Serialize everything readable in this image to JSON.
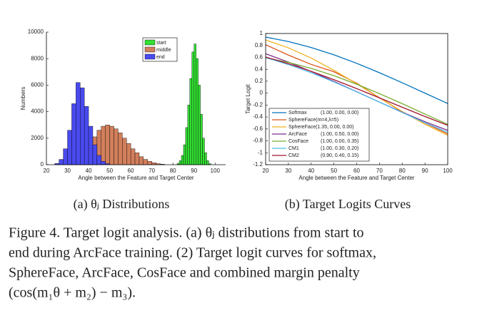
{
  "chart_data": [
    {
      "type": "histogram",
      "xlabel": "Angle between the Feature and Target Center",
      "ylabel": "Numbers",
      "xlim": [
        20,
        105
      ],
      "xticks": [
        20,
        30,
        40,
        50,
        60,
        70,
        80,
        90,
        100
      ],
      "ylim": [
        0,
        10000
      ],
      "yticks": [
        0,
        2000,
        4000,
        6000,
        8000,
        10000
      ],
      "legend": "top-right",
      "series": [
        {
          "name": "start",
          "color": "#33e033",
          "bins": [
            82,
            83,
            84,
            85,
            86,
            87,
            88,
            89,
            90,
            91,
            92,
            93,
            94,
            95,
            96,
            97,
            98
          ],
          "values": [
            100,
            300,
            700,
            1500,
            2800,
            4500,
            6500,
            8500,
            9100,
            8000,
            6000,
            3800,
            2000,
            900,
            300,
            80
          ]
        },
        {
          "name": "middle",
          "color": "#d27f5c",
          "bins": [
            30,
            32,
            34,
            36,
            38,
            40,
            42,
            44,
            46,
            48,
            50,
            52,
            54,
            56,
            58,
            60,
            62,
            64,
            66,
            68,
            70,
            72,
            74,
            76
          ],
          "values": [
            100,
            200,
            400,
            700,
            1100,
            1600,
            2100,
            2600,
            2900,
            3000,
            2900,
            2700,
            2400,
            2000,
            1600,
            1200,
            900,
            600,
            400,
            250,
            150,
            80,
            40
          ]
        },
        {
          "name": "end",
          "color": "#4a4af0",
          "bins": [
            24,
            26,
            28,
            30,
            32,
            34,
            36,
            38,
            40,
            42,
            44,
            46,
            48,
            50
          ],
          "values": [
            100,
            400,
            1200,
            2600,
            4600,
            6200,
            5800,
            4400,
            2900,
            1500,
            700,
            250,
            80
          ]
        }
      ]
    },
    {
      "type": "line",
      "xlabel": "Angle between the Feature and Target Center",
      "ylabel": "Target Logit",
      "xlim": [
        20,
        100
      ],
      "xticks": [
        20,
        30,
        40,
        50,
        60,
        70,
        80,
        90,
        100
      ],
      "ylim": [
        -1.2,
        1
      ],
      "yticks": [
        -1.2,
        -1,
        -0.8,
        -0.6,
        -0.4,
        -0.2,
        0,
        0.2,
        0.4,
        0.6,
        0.8,
        1
      ],
      "legend": "bottom-left",
      "x": [
        20,
        30,
        40,
        50,
        60,
        70,
        80,
        90,
        100
      ],
      "series": [
        {
          "name": "Softmax",
          "params": "(1.00, 0.00, 0.00)",
          "color": "#0072bd",
          "values": [
            0.94,
            0.866,
            0.766,
            0.643,
            0.5,
            0.342,
            0.174,
            0,
            -0.174
          ]
        },
        {
          "name": "SphereFace(m=4,λ=5)",
          "params": "",
          "color": "#d95319",
          "values": [
            0.812,
            0.638,
            0.482,
            0.359,
            0.167,
            -0.077,
            -0.316,
            -0.5,
            -0.684
          ]
        },
        {
          "name": "SphereFace(1.35, 0.00, 0.00)",
          "params": "",
          "color": "#edb120",
          "values": [
            0.891,
            0.76,
            0.588,
            0.383,
            0.156,
            -0.078,
            -0.309,
            -0.522,
            -0.707
          ]
        },
        {
          "name": "ArcFace",
          "params": "(1.00, 0.50, 0.00)",
          "color": "#7e2f8e",
          "values": [
            0.661,
            0.52,
            0.364,
            0.197,
            0.024,
            -0.15,
            -0.32,
            -0.479,
            -0.625
          ]
        },
        {
          "name": "CosFace",
          "params": "(1.00, 0.00, 0.35)",
          "color": "#77ac30",
          "values": [
            0.59,
            0.516,
            0.416,
            0.293,
            0.15,
            -0.008,
            -0.176,
            -0.35,
            -0.524
          ]
        },
        {
          "name": "CM1",
          "params": "(1.00, 0.30, 0.20)",
          "color": "#4dbeee",
          "values": [
            0.597,
            0.479,
            0.342,
            0.188,
            0.022,
            -0.151,
            -0.325,
            -0.496,
            -0.657
          ]
        },
        {
          "name": "CM2",
          "params": "(0.90, 0.40, 0.15)",
          "color": "#a2142f",
          "values": [
            0.606,
            0.494,
            0.366,
            0.226,
            0.076,
            -0.079,
            -0.236,
            -0.391,
            -0.539
          ]
        }
      ]
    }
  ],
  "subcaptions": [
    "(a) θⱼ Distributions",
    "(b) Target Logits Curves"
  ],
  "caption_lines": [
    "Figure 4. Target logit analysis. (a) θⱼ distributions from start to",
    "end during ArcFace training. (2) Target logit curves for softmax,",
    "SphereFace, ArcFace, CosFace and combined margin penalty",
    "(cos(m₁θ + m₂) − m₃)."
  ]
}
